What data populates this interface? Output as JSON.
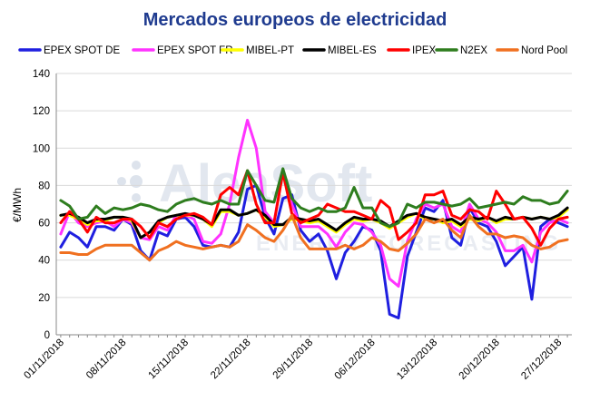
{
  "title": "Mercados europeos de electricidad",
  "watermark": {
    "main": "AleaSoft",
    "sub": "ENERGY FORECASTING"
  },
  "chart_data": {
    "type": "line",
    "title": "Mercados europeos de electricidad",
    "ylabel": "€/MWh",
    "ylim": [
      0,
      140
    ],
    "yticks": [
      0,
      20,
      40,
      60,
      80,
      100,
      120,
      140
    ],
    "grid": true,
    "legend_position": "top",
    "x": [
      "01/11/2018",
      "02/11/2018",
      "03/11/2018",
      "04/11/2018",
      "05/11/2018",
      "06/11/2018",
      "07/11/2018",
      "08/11/2018",
      "09/11/2018",
      "10/11/2018",
      "11/11/2018",
      "12/11/2018",
      "13/11/2018",
      "14/11/2018",
      "15/11/2018",
      "16/11/2018",
      "17/11/2018",
      "18/11/2018",
      "19/11/2018",
      "20/11/2018",
      "21/11/2018",
      "22/11/2018",
      "23/11/2018",
      "24/11/2018",
      "25/11/2018",
      "26/11/2018",
      "27/11/2018",
      "28/11/2018",
      "29/11/2018",
      "30/11/2018",
      "01/12/2018",
      "02/12/2018",
      "03/12/2018",
      "04/12/2018",
      "05/12/2018",
      "06/12/2018",
      "07/12/2018",
      "08/12/2018",
      "09/12/2018",
      "10/12/2018",
      "11/12/2018",
      "12/12/2018",
      "13/12/2018",
      "14/12/2018",
      "15/12/2018",
      "16/12/2018",
      "17/12/2018",
      "18/12/2018",
      "19/12/2018",
      "20/12/2018",
      "21/12/2018",
      "22/12/2018",
      "23/12/2018",
      "24/12/2018",
      "25/12/2018",
      "26/12/2018",
      "27/12/2018",
      "28/12/2018"
    ],
    "xtick_labels": [
      "01/11/2018",
      "08/11/2018",
      "15/11/2018",
      "22/11/2018",
      "29/11/2018",
      "06/12/2018",
      "13/12/2018",
      "20/12/2018",
      "27/12/2018"
    ],
    "series": [
      {
        "name": "EPEX SPOT DE",
        "color": "#1f1fe0",
        "values": [
          47,
          55,
          52,
          47,
          58,
          58,
          56,
          62,
          59,
          45,
          40,
          55,
          53,
          62,
          63,
          58,
          48,
          47,
          48,
          47,
          55,
          78,
          80,
          63,
          54,
          73,
          75,
          56,
          50,
          54,
          45,
          30,
          44,
          50,
          58,
          56,
          45,
          11,
          9,
          42,
          55,
          68,
          66,
          72,
          52,
          48,
          68,
          60,
          58,
          50,
          37,
          42,
          47,
          19,
          58,
          62,
          60,
          58
        ]
      },
      {
        "name": "EPEX SPOT FR",
        "color": "#ff33ff",
        "values": [
          54,
          66,
          60,
          58,
          60,
          61,
          58,
          62,
          60,
          52,
          51,
          58,
          56,
          64,
          64,
          62,
          50,
          49,
          54,
          70,
          95,
          115,
          100,
          66,
          60,
          88,
          70,
          58,
          58,
          58,
          54,
          47,
          55,
          60,
          59,
          55,
          48,
          30,
          26,
          50,
          62,
          70,
          68,
          70,
          58,
          55,
          70,
          62,
          60,
          55,
          45,
          45,
          48,
          39,
          55,
          60,
          62,
          60
        ]
      },
      {
        "name": "MIBEL-PT",
        "color": "#ffff00",
        "values": [
          64,
          64,
          62,
          59,
          61,
          61,
          63,
          63,
          61,
          52,
          55,
          60,
          63,
          64,
          64,
          64,
          62,
          58,
          66,
          66,
          64,
          65,
          67,
          63,
          58,
          59,
          62,
          61,
          60,
          61,
          58,
          55,
          59,
          62,
          61,
          62,
          60,
          57,
          60,
          63,
          65,
          62,
          62,
          60,
          61,
          58,
          62,
          61,
          63,
          60,
          62,
          62,
          63,
          62,
          63,
          62,
          63,
          67
        ]
      },
      {
        "name": "MIBEL-ES",
        "color": "#000000",
        "values": [
          64,
          65,
          63,
          60,
          62,
          62,
          63,
          63,
          62,
          52,
          55,
          61,
          63,
          64,
          65,
          64,
          62,
          59,
          67,
          67,
          64,
          65,
          67,
          64,
          59,
          59,
          63,
          62,
          61,
          62,
          59,
          56,
          60,
          63,
          62,
          62,
          61,
          58,
          61,
          64,
          65,
          63,
          62,
          61,
          62,
          59,
          63,
          62,
          63,
          61,
          63,
          62,
          63,
          62,
          63,
          62,
          64,
          68
        ]
      },
      {
        "name": "IPEX",
        "color": "#ff0000",
        "values": [
          60,
          66,
          62,
          55,
          63,
          60,
          60,
          62,
          62,
          58,
          52,
          60,
          58,
          62,
          64,
          65,
          63,
          59,
          75,
          79,
          75,
          88,
          70,
          60,
          60,
          87,
          65,
          60,
          62,
          64,
          70,
          68,
          66,
          66,
          64,
          62,
          72,
          68,
          51,
          55,
          60,
          75,
          75,
          77,
          64,
          62,
          67,
          66,
          62,
          77,
          70,
          62,
          63,
          57,
          48,
          57,
          62,
          63
        ]
      },
      {
        "name": "N2EX",
        "color": "#2e7d1e",
        "values": [
          72,
          69,
          62,
          63,
          69,
          65,
          68,
          67,
          68,
          70,
          69,
          67,
          66,
          70,
          72,
          73,
          71,
          70,
          72,
          70,
          70,
          88,
          80,
          72,
          71,
          89,
          73,
          68,
          66,
          68,
          66,
          66,
          68,
          79,
          68,
          68,
          60,
          58,
          60,
          70,
          68,
          71,
          71,
          70,
          69,
          70,
          73,
          68,
          69,
          70,
          71,
          70,
          74,
          72,
          72,
          70,
          71,
          77
        ]
      },
      {
        "name": "Nord Pool",
        "color": "#f07020",
        "values": [
          44,
          44,
          43,
          43,
          46,
          48,
          48,
          48,
          48,
          44,
          40,
          45,
          47,
          50,
          48,
          47,
          46,
          47,
          48,
          47,
          50,
          59,
          56,
          52,
          50,
          56,
          64,
          52,
          46,
          46,
          46,
          46,
          48,
          46,
          48,
          52,
          50,
          46,
          45,
          49,
          54,
          62,
          60,
          62,
          56,
          52,
          64,
          58,
          54,
          54,
          52,
          53,
          52,
          48,
          46,
          47,
          50,
          51
        ]
      }
    ]
  }
}
